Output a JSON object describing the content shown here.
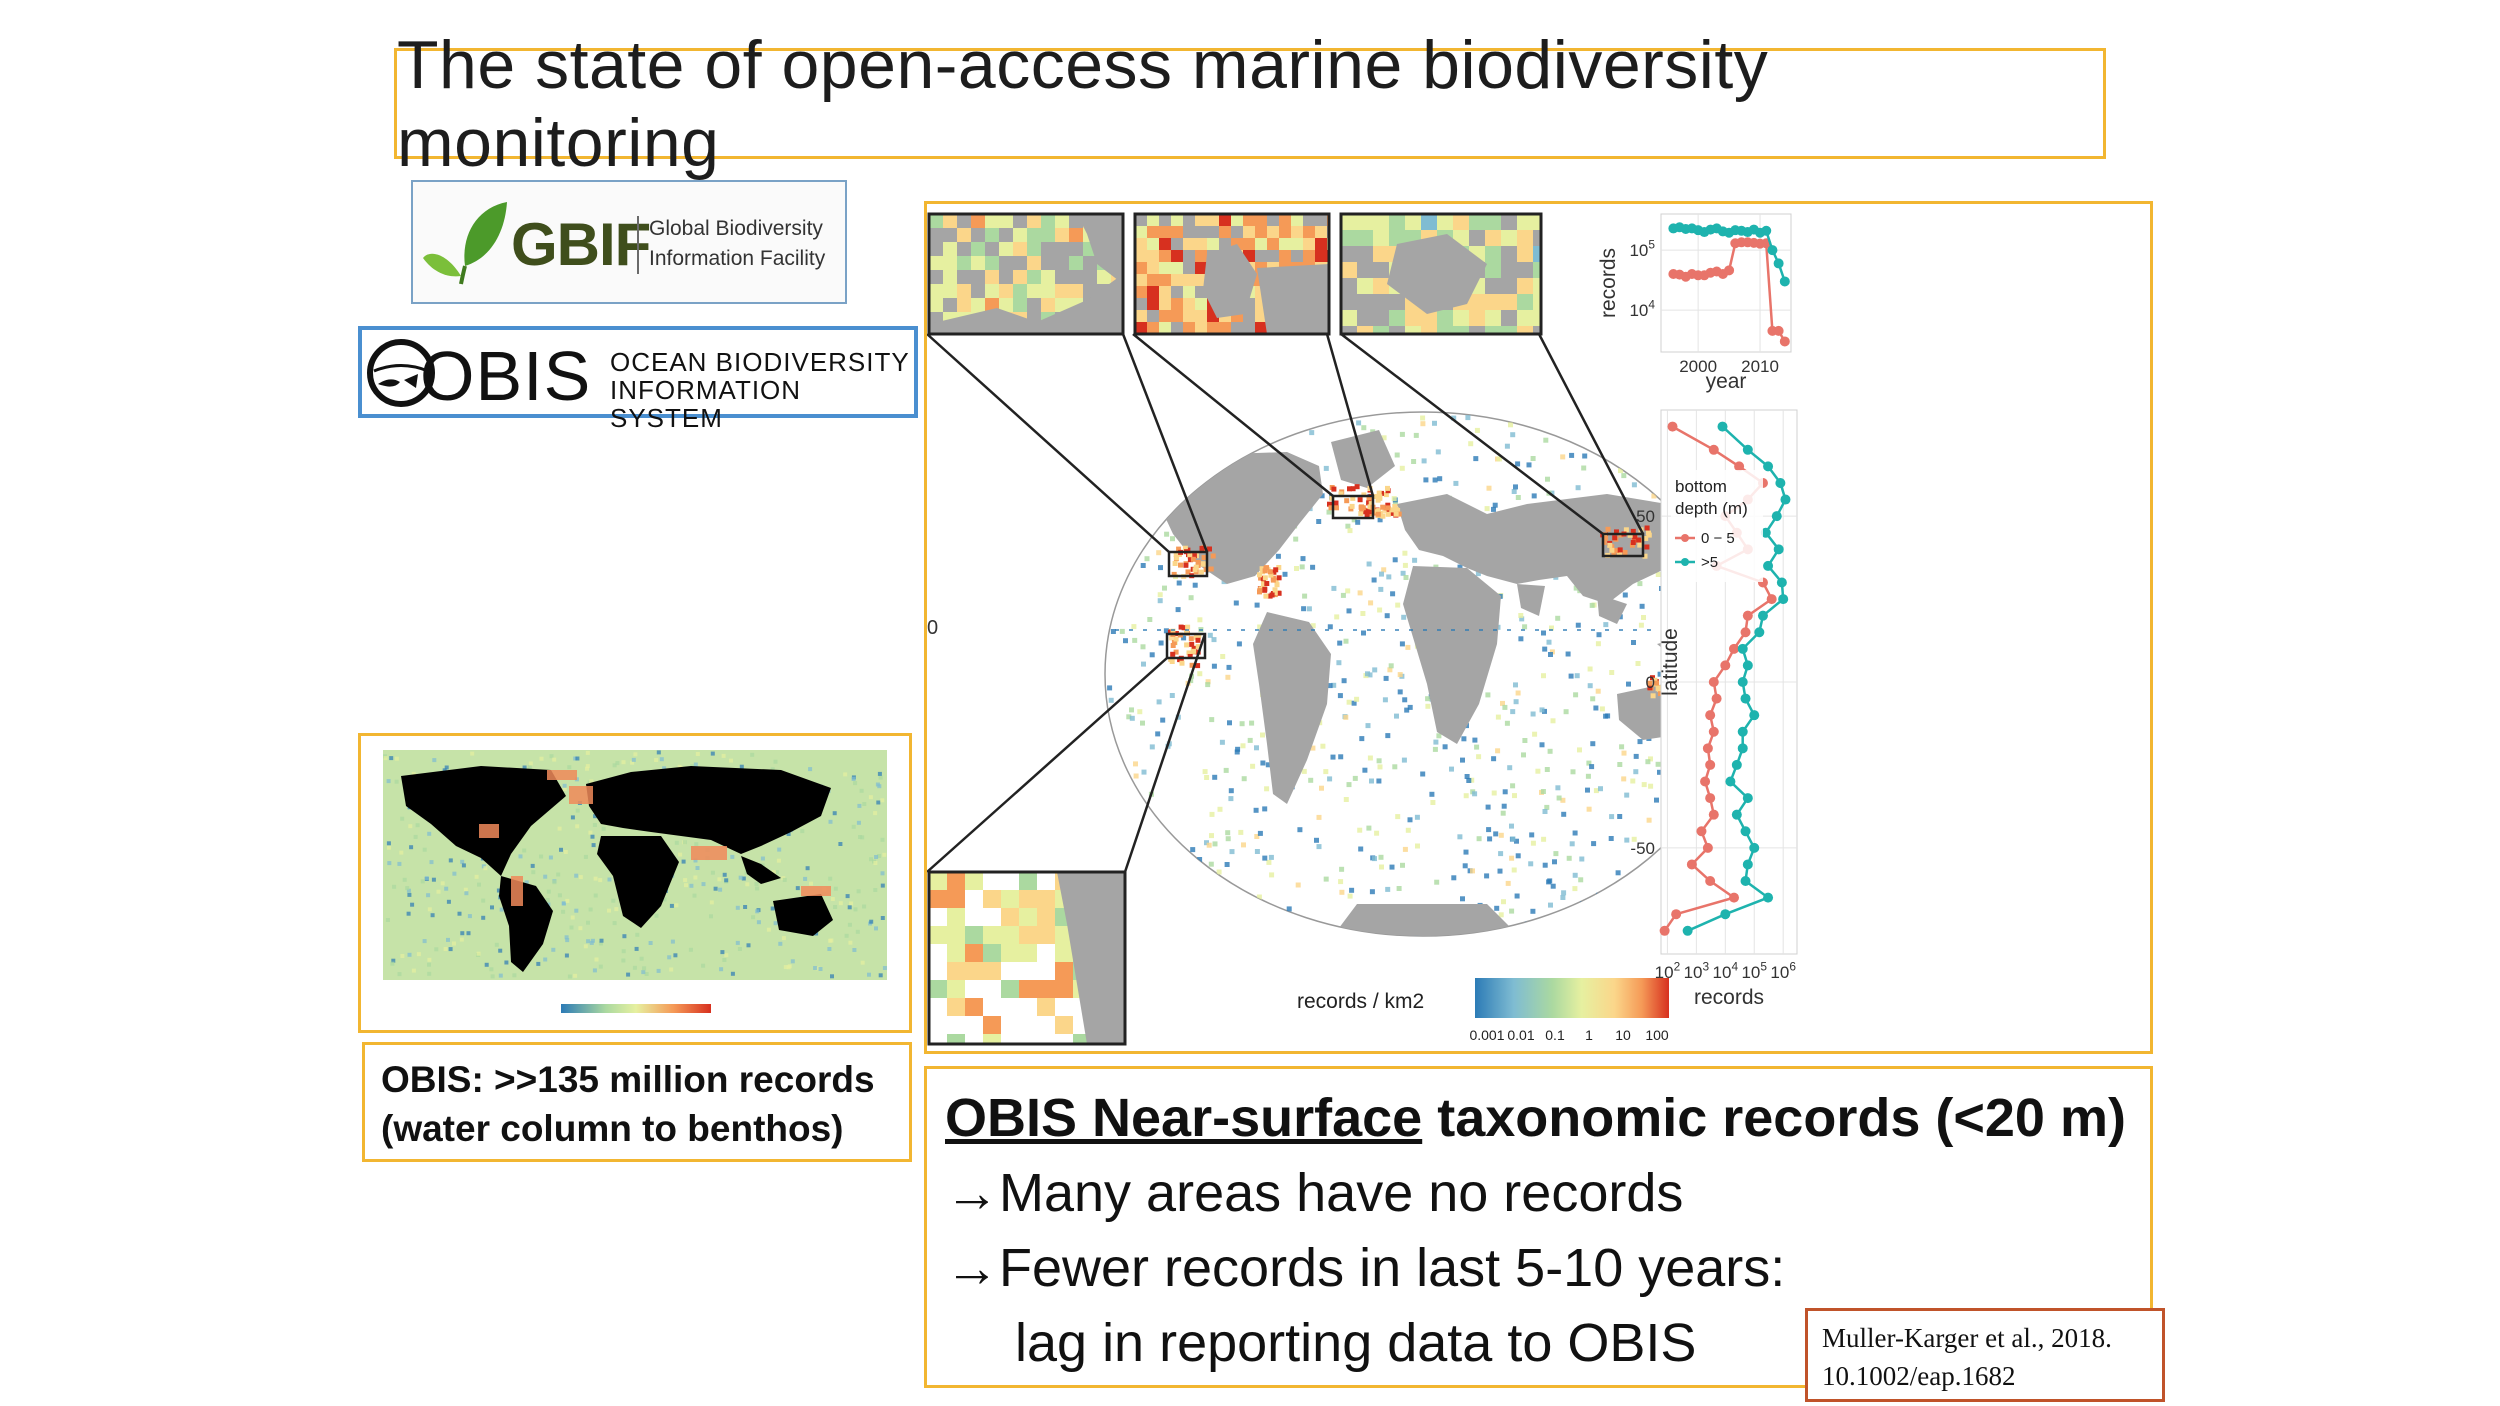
{
  "slide": {
    "title": "The state of open-access marine biodiversity monitoring"
  },
  "logos": {
    "gbif": {
      "word": "GBIF",
      "line1": "Global Biodiversity",
      "line2": "Information Facility",
      "color": "#3f4e1c",
      "leaf_colors": [
        "#4c9a2a",
        "#7bbf3a"
      ]
    },
    "obis": {
      "word": "OBIS",
      "line1": "OCEAN BIODIVERSITY",
      "line2": "INFORMATION SYSTEM"
    }
  },
  "small_map": {
    "caption_line1": "OBIS: >>135 million records",
    "caption_line2": "(water column to benthos)"
  },
  "figure": {
    "map": {
      "legend_title": "records / km2",
      "legend_ticks": [
        "0.001",
        "0.01",
        "0.1",
        "1",
        "10",
        "100"
      ],
      "equator_label": "0",
      "colors": [
        "#2c7bb6",
        "#7fbcd2",
        "#abd9a0",
        "#e6f0a0",
        "#fbd68a",
        "#f59a57",
        "#d7301f"
      ],
      "land_color": "#a5a5a5"
    }
  },
  "chart_data": [
    {
      "type": "line",
      "xlabel": "year",
      "ylabel": "records",
      "y_scale": "log",
      "x_ticks": [
        2000,
        2010
      ],
      "y_ticks": [
        "10^4",
        "10^5"
      ],
      "ylim": [
        2000,
        400000
      ],
      "xlim": [
        1994,
        2015
      ],
      "series": [
        {
          "color": "#e8746a",
          "x": [
            1996,
            1997,
            1998,
            1999,
            2000,
            2001,
            2002,
            2003,
            2004,
            2005,
            2006,
            2007,
            2008,
            2009,
            2010,
            2011,
            2012,
            2013,
            2014
          ],
          "y": [
            40000,
            39000,
            36000,
            40000,
            38000,
            38000,
            42000,
            44000,
            40000,
            46000,
            130000,
            135000,
            135000,
            132000,
            128000,
            130000,
            4500,
            4500,
            3000
          ]
        },
        {
          "color": "#1eb3ae",
          "x": [
            1996,
            1997,
            1998,
            1999,
            2000,
            2001,
            2002,
            2003,
            2004,
            2005,
            2006,
            2007,
            2008,
            2009,
            2010,
            2011,
            2012,
            2013,
            2014
          ],
          "y": [
            230000,
            240000,
            225000,
            230000,
            215000,
            200000,
            220000,
            230000,
            205000,
            195000,
            215000,
            210000,
            200000,
            220000,
            195000,
            210000,
            100000,
            60000,
            30000
          ]
        }
      ]
    },
    {
      "type": "line",
      "xlabel": "records",
      "ylabel": "latitude",
      "x_scale": "log",
      "x_ticks": [
        "10^2",
        "10^3",
        "10^4",
        "10^5",
        "10^6"
      ],
      "y_ticks": [
        50,
        0,
        -50
      ],
      "xlim": [
        60,
        3000000
      ],
      "ylim": [
        -82,
        82
      ],
      "legend": {
        "title": "bottom depth (m)",
        "entries": [
          "0 − 5",
          ">5"
        ],
        "placement": "top-left"
      },
      "series": [
        {
          "name": "0 − 5",
          "color": "#e8746a",
          "latitude": [
            77,
            70,
            65,
            60,
            55,
            50,
            45,
            40,
            35,
            30,
            25,
            20,
            15,
            10,
            5,
            0,
            -5,
            -10,
            -15,
            -20,
            -25,
            -30,
            -35,
            -40,
            -45,
            -50,
            -55,
            -60,
            -65,
            -70,
            -75
          ],
          "records": [
            150,
            4000,
            30000,
            200000,
            60000,
            10000,
            25000,
            60000,
            5000,
            200000,
            400000,
            60000,
            50000,
            20000,
            10000,
            4000,
            5000,
            3000,
            4000,
            2500,
            3000,
            2000,
            3000,
            4000,
            1500,
            2500,
            700,
            3000,
            20000,
            200,
            80
          ]
        },
        {
          "name": ">5",
          "color": "#1eb3ae",
          "latitude": [
            77,
            70,
            65,
            60,
            55,
            50,
            45,
            40,
            35,
            30,
            25,
            20,
            15,
            10,
            5,
            0,
            -5,
            -10,
            -15,
            -20,
            -25,
            -30,
            -35,
            -40,
            -45,
            -50,
            -55,
            -60,
            -65,
            -70,
            -75
          ],
          "records": [
            8000,
            60000,
            300000,
            800000,
            1200000,
            600000,
            250000,
            700000,
            300000,
            900000,
            1000000,
            200000,
            150000,
            40000,
            60000,
            40000,
            50000,
            100000,
            40000,
            40000,
            25000,
            15000,
            60000,
            25000,
            50000,
            100000,
            60000,
            50000,
            300000,
            10000,
            500
          ]
        }
      ]
    }
  ],
  "text": {
    "header_underlined": "OBIS Near-surface",
    "header_rest": " taxonomic records (<20 m)",
    "bullet1": "→Many areas have no records",
    "bullet2": "→Fewer records in last 5-10 years:",
    "bullet2_cont": "lag in reporting data to OBIS"
  },
  "citation": {
    "line1": "Muller-Karger et al., 2018.",
    "line2": "10.1002/eap.1682"
  }
}
